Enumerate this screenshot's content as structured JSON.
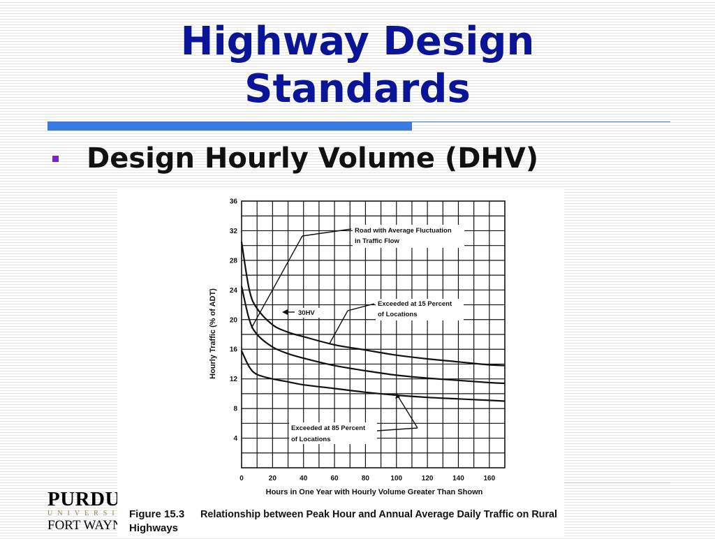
{
  "slide": {
    "title_line1": "Highway Design",
    "title_line2": "Standards",
    "bullet": "Design Hourly Volume (DHV)"
  },
  "logo": {
    "name": "PURDUE",
    "sub": "UNIVERSITY",
    "campus": "FORT WAYNE"
  },
  "figure": {
    "number": "Figure 15.3",
    "caption_line1": "Relationship between Peak Hour and Annual Average Daily Traffic on Rural",
    "caption_line2": "Highways"
  },
  "chart_data": {
    "type": "line",
    "xlabel": "Hours in One Year with Hourly Volume Greater Than Shown",
    "ylabel": "Hourly Traffic (% of ADT)",
    "xlim": [
      0,
      170
    ],
    "ylim": [
      0,
      36
    ],
    "xticks": [
      0,
      20,
      40,
      60,
      80,
      100,
      120,
      140,
      160
    ],
    "yticks": [
      4,
      8,
      12,
      16,
      20,
      24,
      28,
      32,
      36
    ],
    "grid": true,
    "series": [
      {
        "name": "Exceeded at 15 Percent of Locations",
        "x": [
          0,
          5,
          10,
          20,
          30,
          40,
          60,
          80,
          100,
          120,
          140,
          160,
          170
        ],
        "y": [
          30.5,
          24,
          21.5,
          19.3,
          18.3,
          17.7,
          16.6,
          15.9,
          15.2,
          14.7,
          14.3,
          13.9,
          13.8
        ]
      },
      {
        "name": "Road with Average Fluctuation in Traffic Flow",
        "x": [
          0,
          5,
          10,
          20,
          30,
          40,
          60,
          80,
          100,
          120,
          140,
          160,
          170
        ],
        "y": [
          24.5,
          20,
          18,
          16.3,
          15.4,
          14.8,
          13.8,
          13.1,
          12.5,
          12.1,
          11.8,
          11.5,
          11.4
        ]
      },
      {
        "name": "Exceeded at 85 Percent of Locations",
        "x": [
          0,
          5,
          10,
          20,
          30,
          40,
          60,
          80,
          100,
          120,
          140,
          160,
          170
        ],
        "y": [
          15.8,
          13.6,
          12.6,
          12.0,
          11.6,
          11.2,
          10.7,
          10.2,
          9.8,
          9.5,
          9.3,
          9.1,
          9.0
        ]
      }
    ],
    "annotations": [
      {
        "line1": "Road with Average Fluctuation",
        "line2": "in Traffic Flow"
      },
      {
        "line1": "30HV",
        "line2": ""
      },
      {
        "line1": "Exceeded at 15 Percent",
        "line2": "of Locations"
      },
      {
        "line1": "Exceeded at 85 Percent",
        "line2": "of Locations"
      }
    ]
  }
}
